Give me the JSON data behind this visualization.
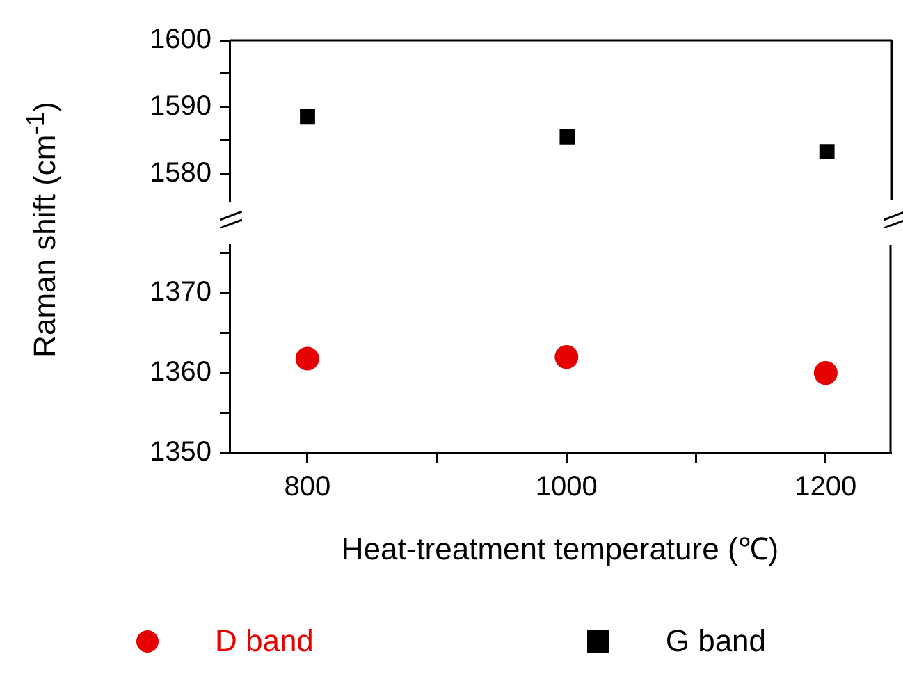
{
  "chart_data": [
    {
      "type": "scatter",
      "x": [
        800,
        1000,
        1200
      ],
      "series": [
        {
          "name": "G band",
          "color": "#000000",
          "values": [
            1588.6,
            1585.5,
            1583.3
          ]
        }
      ],
      "xlim": [
        740,
        1250
      ],
      "ylim": [
        1576,
        1600
      ],
      "yticks": [
        1580,
        {
          "value": 1585,
          "label": null
        },
        1590,
        {
          "value": 1595,
          "label": null
        },
        1600
      ],
      "ylabel": "Raman shift (cm$^{-1}$)",
      "tick_labels": "y",
      "marker": "square",
      "legend": "bottom"
    },
    {
      "type": "scatter",
      "x": [
        800,
        1000,
        1200
      ],
      "series": [
        {
          "name": "D band",
          "color": "#e60000",
          "values": [
            1361.8,
            1362.0,
            1360.0
          ]
        }
      ],
      "xlim": [
        740,
        1250
      ],
      "xticks": [
        800,
        {
          "value": 900,
          "label": null
        },
        1000,
        {
          "value": 1100,
          "label": null
        },
        1200
      ],
      "ylim": [
        1350,
        1376
      ],
      "yticks": [
        1350,
        {
          "value": 1355,
          "label": null
        },
        1360,
        {
          "value": 1365,
          "label": null
        },
        1370,
        {
          "value": 1375,
          "label": null
        }
      ],
      "xlabel": "Heat-treatment temperature (℃)",
      "marker": "circle",
      "legend": "bottom"
    }
  ]
}
